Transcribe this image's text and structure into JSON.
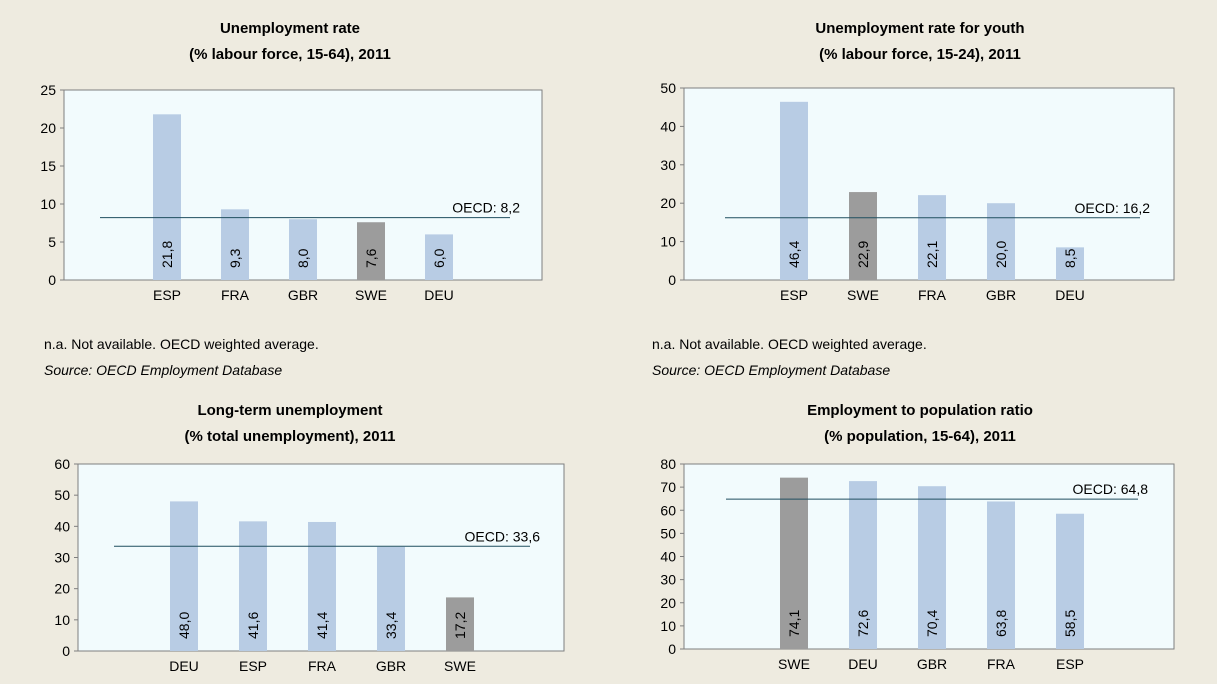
{
  "chart_data": [
    {
      "id": "c0",
      "type": "bar",
      "title": "Unemployment rate",
      "subtitle": "(% labour force, 15-64), 2011",
      "categories": [
        "ESP",
        "FRA",
        "GBR",
        "SWE",
        "DEU"
      ],
      "values": [
        21.8,
        9.3,
        8.0,
        7.6,
        6.0
      ],
      "value_labels": [
        "21,8",
        "9,3",
        "8,0",
        "7,6",
        "6,0"
      ],
      "highlight_category": "SWE",
      "ylim": [
        0,
        25
      ],
      "yticks": [
        0,
        5,
        10,
        15,
        20,
        25
      ],
      "reference": {
        "value": 8.2,
        "label": "OECD: 8,2"
      },
      "note": "n.a. Not available. OECD weighted average.",
      "source": "Source: OECD Employment Database",
      "grid": false
    },
    {
      "id": "c1",
      "type": "bar",
      "title": "Unemployment rate for youth",
      "subtitle": "(% labour force, 15-24), 2011",
      "categories": [
        "ESP",
        "SWE",
        "FRA",
        "GBR",
        "DEU"
      ],
      "values": [
        46.4,
        22.9,
        22.1,
        20.0,
        8.5
      ],
      "value_labels": [
        "46,4",
        "22,9",
        "22,1",
        "20,0",
        "8,5"
      ],
      "highlight_category": "SWE",
      "ylim": [
        0,
        50
      ],
      "yticks": [
        0,
        10,
        20,
        30,
        40,
        50
      ],
      "reference": {
        "value": 16.2,
        "label": "OECD: 16,2"
      },
      "note": "n.a. Not available. OECD weighted average.",
      "source": "Source: OECD Employment Database",
      "grid": false
    },
    {
      "id": "c2",
      "type": "bar",
      "title": "Long-term unemployment",
      "subtitle": "(% total unemployment), 2011",
      "categories": [
        "DEU",
        "ESP",
        "FRA",
        "GBR",
        "SWE"
      ],
      "values": [
        48.0,
        41.6,
        41.4,
        33.4,
        17.2
      ],
      "value_labels": [
        "48,0",
        "41,6",
        "41,4",
        "33,4",
        "17,2"
      ],
      "highlight_category": "SWE",
      "ylim": [
        0,
        60
      ],
      "yticks": [
        0,
        10,
        20,
        30,
        40,
        50,
        60
      ],
      "reference": {
        "value": 33.6,
        "label": "OECD: 33,6"
      },
      "grid": false
    },
    {
      "id": "c3",
      "type": "bar",
      "title": "Employment to population ratio",
      "subtitle": "(% population, 15-64), 2011",
      "categories": [
        "SWE",
        "DEU",
        "GBR",
        "FRA",
        "ESP"
      ],
      "values": [
        74.1,
        72.6,
        70.4,
        63.8,
        58.5
      ],
      "value_labels": [
        "74,1",
        "72,6",
        "70,4",
        "63,8",
        "58,5"
      ],
      "highlight_category": "SWE",
      "ylim": [
        0,
        80
      ],
      "yticks": [
        0,
        10,
        20,
        30,
        40,
        50,
        60,
        70,
        80
      ],
      "reference": {
        "value": 64.8,
        "label": "OECD: 64,8"
      },
      "grid": false
    }
  ],
  "colors": {
    "bar": "#b8cce4",
    "highlight_bar": "#9c9c9c",
    "plot_background": "#f2fbfd",
    "page_background": "#eeebe0",
    "reference_line": "#1f4e5f"
  }
}
